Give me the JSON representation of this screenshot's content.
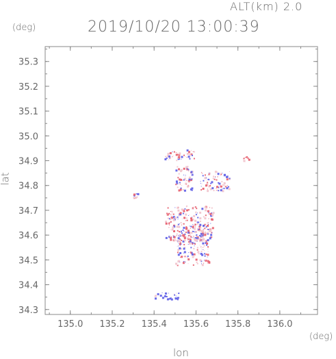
{
  "header": {
    "altitude_label": "ALT(km) 2.0",
    "timestamp": "2019/10/20 13:00:39"
  },
  "chart_data": {
    "type": "scatter",
    "title": "2019/10/20 13:00:39",
    "xlabel": "lon",
    "ylabel": "lat",
    "x_unit": "(deg)",
    "y_unit": "(deg)",
    "xlim": [
      134.88,
      136.18
    ],
    "ylim": [
      34.28,
      35.36
    ],
    "x_ticks": [
      "135.0",
      "135.2",
      "135.4",
      "135.6",
      "135.8",
      "136.0"
    ],
    "y_ticks": [
      "34.3",
      "34.4",
      "34.5",
      "34.6",
      "34.7",
      "34.8",
      "34.9",
      "35.0",
      "35.1",
      "35.2",
      "35.3"
    ],
    "grid": false,
    "colors": {
      "positive": "#e86a78",
      "negative": "#6a6ae8",
      "faint": "#f2c8d0",
      "axis": "#888888",
      "text": "#666666"
    },
    "clusters": [
      {
        "polarity": "mixed",
        "lon": [
          135.44,
          135.55
        ],
        "lat": [
          34.9,
          34.94
        ]
      },
      {
        "polarity": "mixed",
        "lon": [
          135.55,
          135.6
        ],
        "lat": [
          34.91,
          34.95
        ]
      },
      {
        "polarity": "mixed",
        "lon": [
          135.5,
          135.58
        ],
        "lat": [
          34.78,
          34.88
        ]
      },
      {
        "polarity": "mixed",
        "lon": [
          135.62,
          135.76
        ],
        "lat": [
          34.78,
          34.86
        ]
      },
      {
        "polarity": "positive",
        "lon": [
          135.82,
          135.85
        ],
        "lat": [
          34.9,
          34.92
        ]
      },
      {
        "polarity": "mixed",
        "lon": [
          135.3,
          135.32
        ],
        "lat": [
          34.75,
          34.77
        ]
      },
      {
        "polarity": "mixed",
        "lon": [
          135.45,
          135.68
        ],
        "lat": [
          34.58,
          34.72
        ]
      },
      {
        "polarity": "mixed",
        "lon": [
          135.5,
          135.66
        ],
        "lat": [
          34.48,
          34.62
        ]
      },
      {
        "polarity": "negative",
        "lon": [
          135.4,
          135.52
        ],
        "lat": [
          34.34,
          34.37
        ]
      }
    ]
  }
}
